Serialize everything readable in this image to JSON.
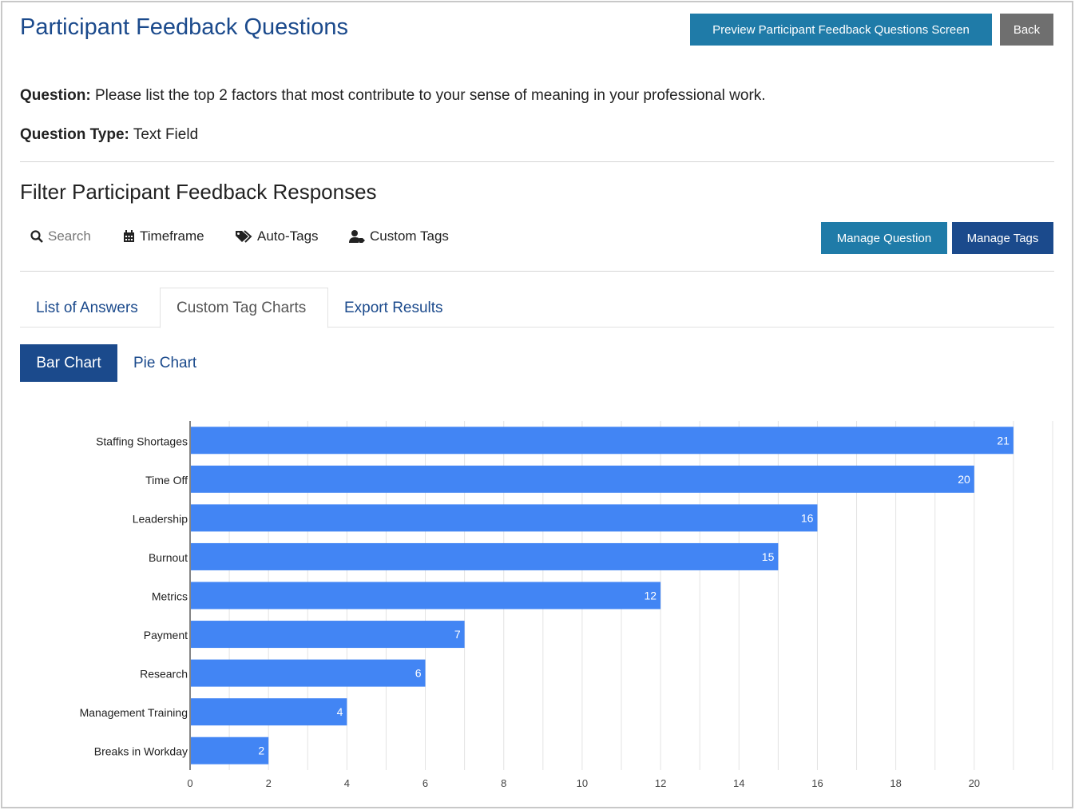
{
  "header": {
    "title": "Participant Feedback Questions",
    "preview_label": "Preview Participant Feedback Questions Screen",
    "back_label": "Back"
  },
  "question": {
    "label": "Question:",
    "text": "Please list the top 2 factors that most contribute to your sense of meaning in your professional work.",
    "type_label": "Question Type:",
    "type_value": "Text Field"
  },
  "filter": {
    "heading": "Filter Participant Feedback Responses",
    "search_placeholder": "Search",
    "timeframe": "Timeframe",
    "auto_tags": "Auto-Tags",
    "custom_tags": "Custom Tags",
    "manage_question": "Manage Question",
    "manage_tags": "Manage Tags"
  },
  "tabs": [
    {
      "label": "List of Answers"
    },
    {
      "label": "Custom Tag Charts"
    },
    {
      "label": "Export Results"
    }
  ],
  "chart_tabs": {
    "bar": "Bar Chart",
    "pie": "Pie Chart"
  },
  "colors": {
    "accent": "#1b4a8c",
    "teal": "#1f7ba8",
    "bar": "#4285f4"
  },
  "chart_data": {
    "type": "bar",
    "orientation": "horizontal",
    "categories": [
      "Staffing Shortages",
      "Time Off",
      "Leadership",
      "Burnout",
      "Metrics",
      "Payment",
      "Research",
      "Management Training",
      "Breaks in Workday"
    ],
    "values": [
      21,
      20,
      16,
      15,
      12,
      7,
      6,
      4,
      2
    ],
    "xlim": [
      0,
      22
    ],
    "xticks": [
      0,
      2,
      4,
      6,
      8,
      10,
      12,
      14,
      16,
      18,
      20
    ],
    "grid": true,
    "data_labels": true
  }
}
